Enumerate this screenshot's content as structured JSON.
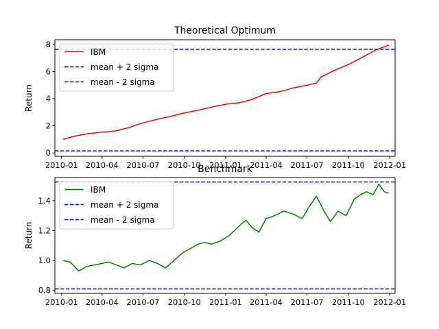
{
  "chart_data": [
    {
      "type": "line",
      "title": "Theoretical Optimum",
      "xlabel": "",
      "ylabel": "Return",
      "xlim": [
        "2009-12-17",
        "2012-01-13"
      ],
      "ylim": [
        -0.25,
        8.35
      ],
      "yticks": [
        0,
        2,
        4,
        6,
        8
      ],
      "ytick_labels": [
        "0",
        "2",
        "4",
        "6",
        "8"
      ],
      "xticks": [
        "2010-01-01",
        "2010-04-01",
        "2010-07-01",
        "2010-10-01",
        "2011-01-01",
        "2011-04-01",
        "2011-07-01",
        "2011-10-01",
        "2012-01-01"
      ],
      "xtick_labels": [
        "2010-01",
        "2010-04",
        "2010-07",
        "2010-10",
        "2011-01",
        "2011-04",
        "2011-07",
        "2011-10",
        "2012-01"
      ],
      "grid": false,
      "legend_position": "top-left",
      "series": [
        {
          "name": "IBM",
          "color": "#ff0000",
          "style": "solid",
          "points": [
            [
              "2010-01-04",
              1.0
            ],
            [
              "2010-02-01",
              1.25
            ],
            [
              "2010-03-01",
              1.42
            ],
            [
              "2010-04-01",
              1.53
            ],
            [
              "2010-05-03",
              1.63
            ],
            [
              "2010-06-01",
              1.88
            ],
            [
              "2010-07-01",
              2.22
            ],
            [
              "2010-08-02",
              2.48
            ],
            [
              "2010-09-01",
              2.7
            ],
            [
              "2010-10-01",
              2.95
            ],
            [
              "2010-11-01",
              3.15
            ],
            [
              "2010-12-01",
              3.38
            ],
            [
              "2011-01-03",
              3.6
            ],
            [
              "2011-02-01",
              3.7
            ],
            [
              "2011-03-01",
              3.95
            ],
            [
              "2011-04-01",
              4.38
            ],
            [
              "2011-05-02",
              4.52
            ],
            [
              "2011-06-01",
              4.8
            ],
            [
              "2011-07-01",
              5.0
            ],
            [
              "2011-07-22",
              5.15
            ],
            [
              "2011-08-01",
              5.6
            ],
            [
              "2011-09-01",
              6.1
            ],
            [
              "2011-10-03",
              6.55
            ],
            [
              "2011-11-01",
              7.05
            ],
            [
              "2011-12-01",
              7.6
            ],
            [
              "2011-12-30",
              7.95
            ]
          ]
        },
        {
          "name": "mean + 2 sigma",
          "color": "#0000ff",
          "style": "dashed",
          "y": 7.65
        },
        {
          "name": "mean - 2 sigma",
          "color": "#0000ff",
          "style": "dashed",
          "y": 0.15
        }
      ]
    },
    {
      "type": "line",
      "title": "Benchmark",
      "xlabel": "",
      "ylabel": "Return",
      "xlim": [
        "2009-12-17",
        "2012-01-13"
      ],
      "ylim": [
        0.78,
        1.555
      ],
      "yticks": [
        0.8,
        1.0,
        1.2,
        1.4
      ],
      "ytick_labels": [
        "0.8",
        "1.0",
        "1.2",
        "1.4"
      ],
      "xticks": [
        "2010-01-01",
        "2010-04-01",
        "2010-07-01",
        "2010-10-01",
        "2011-01-01",
        "2011-04-01",
        "2011-07-01",
        "2011-10-01",
        "2012-01-01"
      ],
      "xtick_labels": [
        "2010-01",
        "2010-04",
        "2010-07",
        "2010-10",
        "2011-01",
        "2011-04",
        "2011-07",
        "2011-10",
        "2012-01"
      ],
      "grid": false,
      "legend_position": "top-left",
      "series": [
        {
          "name": "IBM",
          "color": "#008000",
          "style": "solid",
          "points": [
            [
              "2010-01-04",
              1.0
            ],
            [
              "2010-01-20",
              0.99
            ],
            [
              "2010-02-08",
              0.93
            ],
            [
              "2010-02-26",
              0.96
            ],
            [
              "2010-03-15",
              0.97
            ],
            [
              "2010-04-01",
              0.98
            ],
            [
              "2010-04-15",
              0.99
            ],
            [
              "2010-05-03",
              0.97
            ],
            [
              "2010-05-20",
              0.95
            ],
            [
              "2010-06-07",
              0.98
            ],
            [
              "2010-06-25",
              0.97
            ],
            [
              "2010-07-15",
              1.0
            ],
            [
              "2010-08-02",
              0.98
            ],
            [
              "2010-08-20",
              0.95
            ],
            [
              "2010-09-08",
              1.0
            ],
            [
              "2010-09-27",
              1.05
            ],
            [
              "2010-10-15",
              1.08
            ],
            [
              "2010-11-01",
              1.11
            ],
            [
              "2010-11-15",
              1.12
            ],
            [
              "2010-12-01",
              1.11
            ],
            [
              "2010-12-20",
              1.13
            ],
            [
              "2011-01-10",
              1.17
            ],
            [
              "2011-01-31",
              1.23
            ],
            [
              "2011-02-15",
              1.27
            ],
            [
              "2011-03-01",
              1.22
            ],
            [
              "2011-03-16",
              1.19
            ],
            [
              "2011-04-01",
              1.28
            ],
            [
              "2011-04-20",
              1.3
            ],
            [
              "2011-05-10",
              1.33
            ],
            [
              "2011-06-01",
              1.31
            ],
            [
              "2011-06-20",
              1.28
            ],
            [
              "2011-07-08",
              1.37
            ],
            [
              "2011-07-22",
              1.43
            ],
            [
              "2011-08-08",
              1.33
            ],
            [
              "2011-08-22",
              1.26
            ],
            [
              "2011-09-08",
              1.33
            ],
            [
              "2011-09-26",
              1.3
            ],
            [
              "2011-10-14",
              1.41
            ],
            [
              "2011-10-28",
              1.44
            ],
            [
              "2011-11-10",
              1.46
            ],
            [
              "2011-11-25",
              1.44
            ],
            [
              "2011-12-08",
              1.51
            ],
            [
              "2011-12-20",
              1.46
            ],
            [
              "2011-12-30",
              1.45
            ]
          ]
        },
        {
          "name": "mean + 2 sigma",
          "color": "#0000ff",
          "style": "dashed",
          "y": 1.525
        },
        {
          "name": "mean - 2 sigma",
          "color": "#0000ff",
          "style": "dashed",
          "y": 0.81
        }
      ]
    }
  ]
}
